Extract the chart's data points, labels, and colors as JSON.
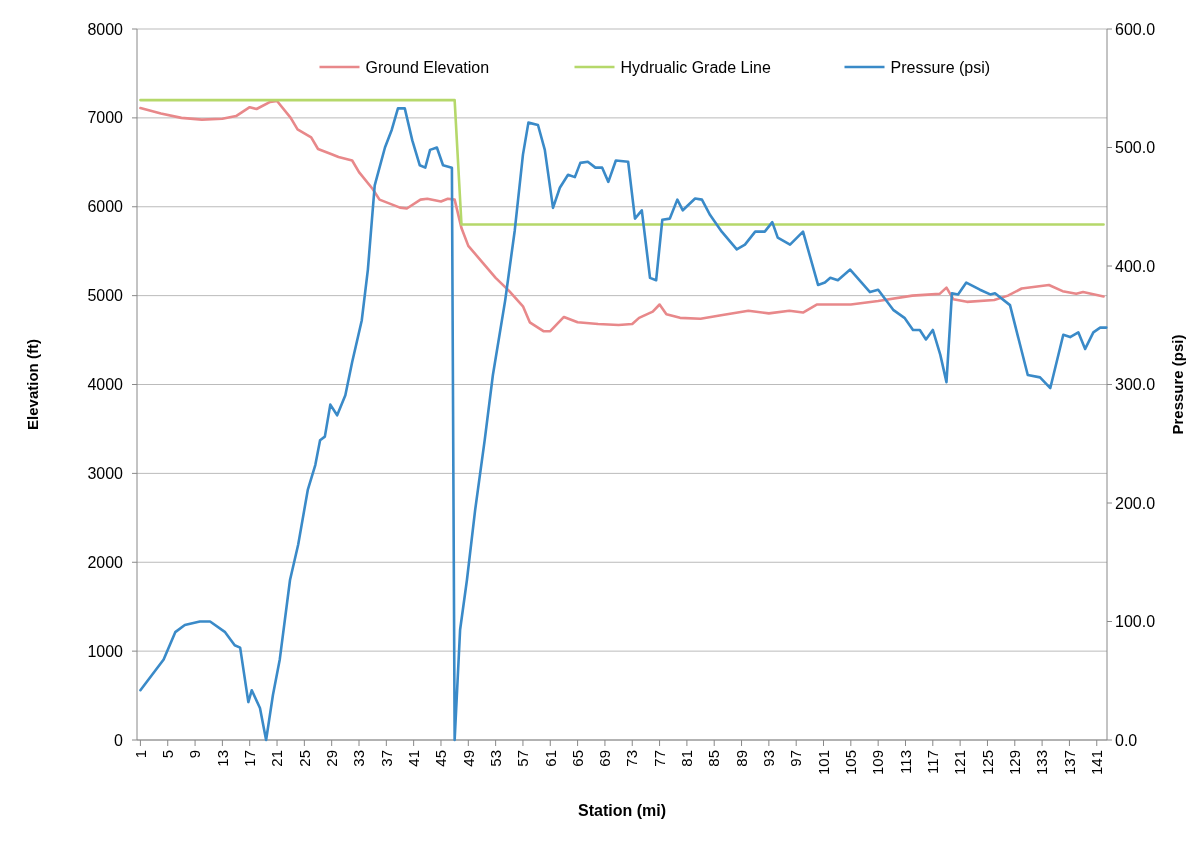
{
  "chart_data": {
    "type": "line",
    "xlabel": "Station (mi)",
    "ylabel": "Elevation (ft)",
    "y2label": "Pressure (psi)",
    "xlim": [
      0.5,
      142.5
    ],
    "xticks": [
      1,
      5,
      9,
      13,
      17,
      21,
      25,
      29,
      33,
      37,
      41,
      45,
      49,
      53,
      57,
      61,
      65,
      69,
      73,
      77,
      81,
      85,
      89,
      93,
      97,
      101,
      105,
      109,
      113,
      117,
      121,
      125,
      129,
      133,
      137,
      141
    ],
    "ylim": [
      0,
      8000
    ],
    "yticks": [
      0,
      1000,
      2000,
      3000,
      4000,
      5000,
      6000,
      7000,
      8000
    ],
    "y2lim": [
      0,
      600
    ],
    "y2ticks": [
      {
        "value": 0,
        "label": "0.0"
      },
      {
        "value": 100,
        "label": "100.0"
      },
      {
        "value": 200,
        "label": "200.0"
      },
      {
        "value": 300,
        "label": "300.0"
      },
      {
        "value": 400,
        "label": "400.0"
      },
      {
        "value": 500,
        "label": "500.0"
      },
      {
        "value": 600,
        "label": "600.0"
      }
    ],
    "grid": "y",
    "legend": "top",
    "marker": "none",
    "series": [
      {
        "name": "Ground Elevation",
        "color": "#e8888a",
        "x": [
          1,
          4,
          7,
          10,
          13,
          15,
          17,
          18,
          20,
          21,
          23,
          24,
          26,
          27,
          29,
          30,
          32,
          33,
          35,
          36,
          39,
          40,
          42,
          43,
          45,
          46,
          47,
          48,
          49,
          51,
          53,
          55,
          57,
          58,
          60,
          61,
          63,
          65,
          68,
          71,
          73,
          74,
          76,
          77,
          78,
          80,
          83,
          86,
          90,
          93,
          96,
          98,
          100,
          105,
          109,
          114,
          118,
          119,
          120,
          122,
          126,
          128,
          130,
          134,
          136,
          138,
          139,
          142
        ],
        "values": [
          7110,
          7050,
          7000,
          6980,
          6990,
          7020,
          7120,
          7100,
          7180,
          7190,
          7000,
          6870,
          6780,
          6650,
          6590,
          6560,
          6520,
          6390,
          6200,
          6080,
          5990,
          5980,
          6080,
          6090,
          6060,
          6090,
          6080,
          5760,
          5560,
          5380,
          5200,
          5050,
          4880,
          4700,
          4600,
          4600,
          4760,
          4700,
          4680,
          4670,
          4680,
          4750,
          4820,
          4900,
          4790,
          4750,
          4740,
          4780,
          4830,
          4800,
          4830,
          4810,
          4900,
          4900,
          4940,
          5000,
          5020,
          5090,
          4960,
          4930,
          4950,
          5000,
          5080,
          5120,
          5050,
          5020,
          5040,
          4990
        ]
      },
      {
        "name": "Hydrualic Grade Line",
        "color": "#b5d86a",
        "x": [
          1,
          47,
          48,
          142
        ],
        "values": [
          7200,
          7200,
          5800,
          5800
        ]
      },
      {
        "name": "Pressure (psi)",
        "color": "#3a8ac8",
        "axis": "y2",
        "x": [
          1,
          4.4,
          6.1,
          7.5,
          9.7,
          11.2,
          13.4,
          14.8,
          15.6,
          16.8,
          17.3,
          18.5,
          19.4,
          20.4,
          21.4,
          22.9,
          24.1,
          25.5,
          26.6,
          27.3,
          28,
          28.8,
          29.8,
          31,
          32,
          33.4,
          34.3,
          35.3,
          36.8,
          37.8,
          38.7,
          39.7,
          40.8,
          41.9,
          42.7,
          43.4,
          44.4,
          45.3,
          46.6,
          47,
          47.8,
          48.8,
          50,
          51.4,
          52.6,
          54.4,
          55.8,
          57,
          57.8,
          59.2,
          60.2,
          61.4,
          62.4,
          63.6,
          64.6,
          65.4,
          66.5,
          67.6,
          68.6,
          69.5,
          70.6,
          72.4,
          73.4,
          74.4,
          75.6,
          76.5,
          77.4,
          78.5,
          79.6,
          80.4,
          82.2,
          83.2,
          84.4,
          86.1,
          88.3,
          89.5,
          91,
          92.4,
          93.5,
          94.3,
          96.1,
          98,
          100.2,
          101.2,
          102,
          103.1,
          104.9,
          107.8,
          109,
          111.2,
          112.9,
          114.1,
          115.1,
          116,
          117,
          118.1,
          119,
          119.8,
          120.7,
          121.9,
          123.9,
          125.4,
          126.1,
          128.3,
          130.9,
          132.7,
          134.2,
          136.1,
          137.1,
          138.3,
          139.3,
          140.5,
          141.5,
          142.4
        ],
        "values": [
          42,
          68,
          91,
          97,
          100,
          100,
          91,
          80,
          78,
          32,
          42,
          27,
          0,
          38,
          68,
          135,
          165,
          211,
          232,
          253,
          256,
          283,
          274,
          291,
          319,
          354,
          397,
          468,
          500,
          515,
          533,
          533,
          506,
          485,
          483,
          498,
          500,
          485,
          483,
          0,
          93,
          135,
          194,
          253,
          308,
          371,
          430,
          494,
          521,
          519,
          498,
          449,
          466,
          477,
          475,
          487,
          488,
          483,
          483,
          471,
          489,
          488,
          440,
          447,
          390,
          388,
          439,
          440,
          456,
          447,
          457,
          456,
          443,
          429,
          414,
          418,
          429,
          429,
          437,
          424,
          418,
          429,
          384,
          386,
          390,
          388,
          397,
          378,
          380,
          363,
          356,
          346,
          346,
          338,
          346,
          325,
          302,
          377,
          376,
          386,
          380,
          376,
          377,
          367,
          308,
          306,
          297,
          342,
          340,
          344,
          330,
          344,
          348,
          348
        ]
      }
    ]
  }
}
